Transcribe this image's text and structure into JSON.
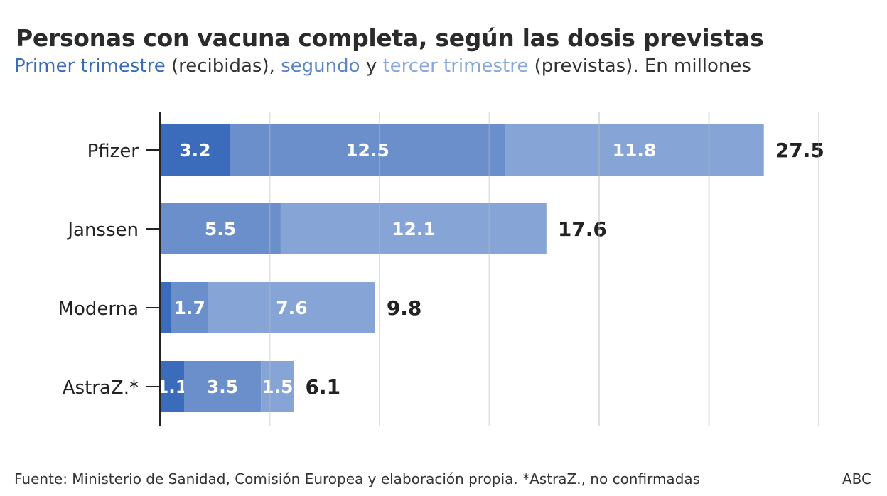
{
  "chart_data": {
    "type": "bar",
    "orientation": "horizontal",
    "stacked": true,
    "title": "Personas con vacuna completa, según las dosis previstas",
    "subtitle_parts": [
      {
        "text": "Primer trimestre",
        "color": "#3b6cb7"
      },
      {
        "text": " (recibidas), ",
        "color": "#333333"
      },
      {
        "text": "segundo",
        "color": "#5a86c8"
      },
      {
        "text": " y ",
        "color": "#333333"
      },
      {
        "text": "tercer trimestre",
        "color": "#89a8d8"
      },
      {
        "text": " (previstas). En millones",
        "color": "#333333"
      }
    ],
    "categories": [
      "Pfizer",
      "Janssen",
      "Moderna",
      "AstraZ.*"
    ],
    "series": [
      {
        "name": "Primer trimestre",
        "color": "#3b6bbb",
        "values": [
          3.2,
          0,
          0.5,
          1.1
        ],
        "labels": [
          "3.2",
          "",
          "",
          "1.1"
        ]
      },
      {
        "name": "segundo",
        "color": "#6a8fca",
        "values": [
          12.5,
          5.5,
          1.7,
          3.5
        ],
        "labels": [
          "12.5",
          "5.5",
          "1.7",
          "3.5"
        ]
      },
      {
        "name": "tercer trimestre",
        "color": "#86a5d6",
        "values": [
          11.8,
          12.1,
          7.6,
          1.5
        ],
        "labels": [
          "11.8",
          "12.1",
          "7.6",
          "1.5"
        ]
      }
    ],
    "totals": [
      "27.5",
      "17.6",
      "9.8",
      "6.1"
    ],
    "xlim": [
      0,
      30
    ],
    "x_gridlines": [
      5,
      10,
      15,
      20,
      25,
      30
    ],
    "grid": true,
    "legend": "none"
  },
  "footer": {
    "source": "Fuente: Ministerio de Sanidad, Comisión Europea y elaboración propia. *AstraZ., no confirmadas",
    "brand": "ABC"
  }
}
